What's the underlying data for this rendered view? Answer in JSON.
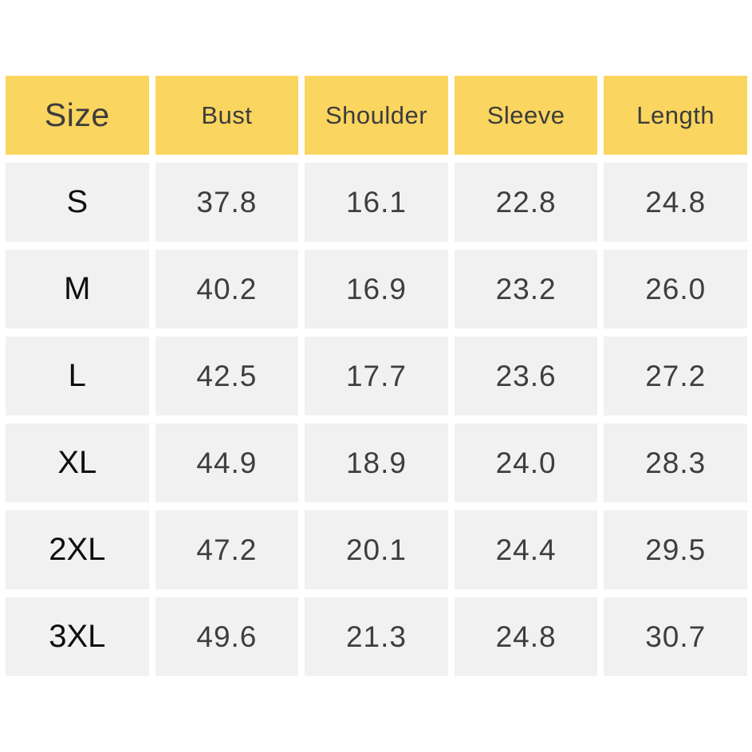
{
  "page": {
    "background": "#FFFFFF"
  },
  "colors": {
    "header_bg": "#FAD55F",
    "cell_bg": "#F1F1F1",
    "header_text": "#3C3C3C",
    "value_text": "#3E3E3E",
    "size_label_text": "#0E0E0E"
  },
  "chart_data": {
    "type": "table",
    "title": "",
    "columns": [
      "Size",
      "Bust",
      "Shoulder",
      "Sleeve",
      "Length"
    ],
    "rows": [
      [
        "S",
        "37.8",
        "16.1",
        "22.8",
        "24.8"
      ],
      [
        "M",
        "40.2",
        "16.9",
        "23.2",
        "26.0"
      ],
      [
        "L",
        "42.5",
        "17.7",
        "23.6",
        "27.2"
      ],
      [
        "XL",
        "44.9",
        "18.9",
        "24.0",
        "28.3"
      ],
      [
        "2XL",
        "47.2",
        "20.1",
        "24.4",
        "29.5"
      ],
      [
        "3XL",
        "49.6",
        "21.3",
        "24.8",
        "30.7"
      ]
    ]
  }
}
